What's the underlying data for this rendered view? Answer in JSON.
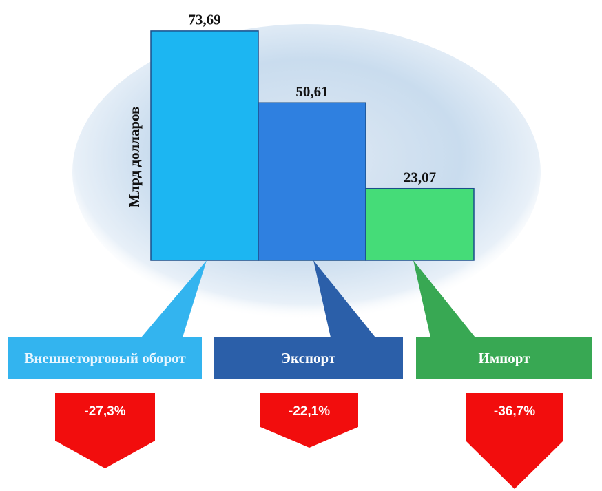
{
  "chart_data": {
    "type": "bar",
    "y_label": "Млрд долларов",
    "categories": [
      "Внешнеторговый оборот",
      "Экспорт",
      "Импорт"
    ],
    "values": [
      73.69,
      50.61,
      23.07
    ],
    "value_labels": [
      "73,69",
      "50,61",
      "23,07"
    ],
    "colors": [
      "#1cb6f2",
      "#2f80e0",
      "#45dc78"
    ],
    "changes": [
      -27.3,
      -22.1,
      -36.7
    ],
    "change_labels": [
      "-27,3%",
      "-22,1%",
      "-36,7%"
    ]
  }
}
